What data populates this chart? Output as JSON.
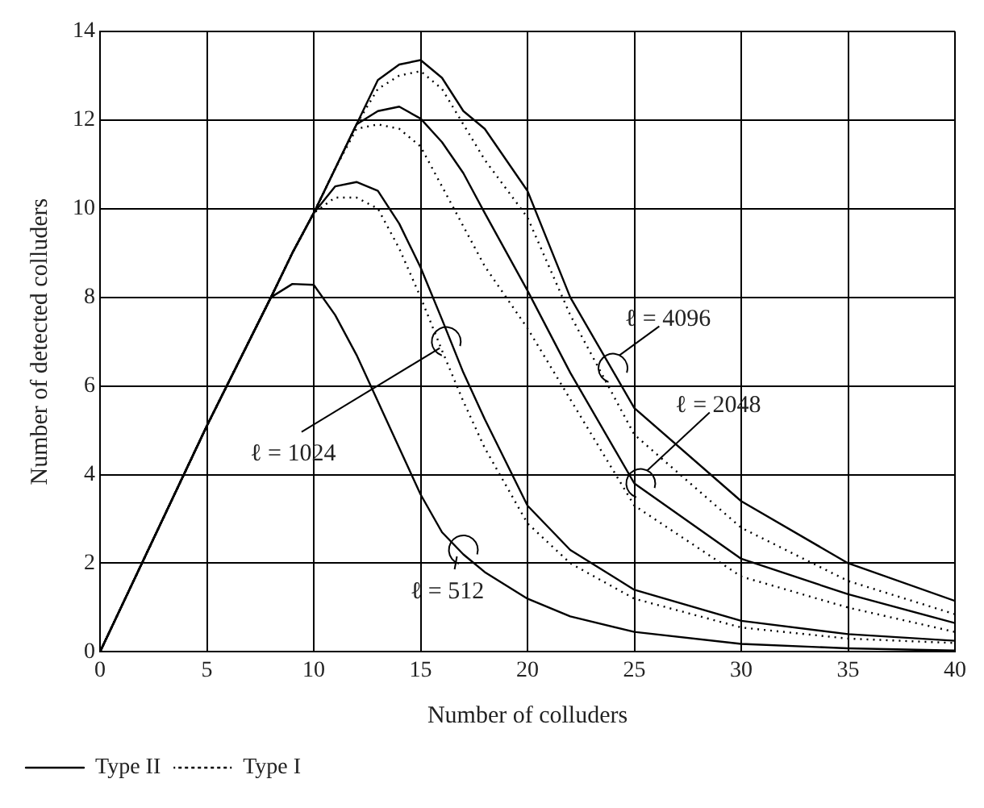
{
  "chart_data": {
    "type": "line",
    "xlabel": "Number of colluders",
    "ylabel": "Number of detected colluders",
    "x": [
      0,
      5,
      8,
      9,
      10,
      11,
      12,
      13,
      14,
      15,
      16,
      17,
      18,
      20,
      22,
      25,
      30,
      35,
      40
    ],
    "series": [
      {
        "name": "Type II",
        "color": "#000000",
        "line_style": "solid",
        "values": [
          0,
          5.1,
          8.0,
          8.3,
          8.28,
          7.6,
          6.7,
          5.65,
          4.6,
          3.55,
          2.7,
          2.2,
          1.8,
          1.2,
          0.8,
          0.45,
          0.18,
          0.08,
          0.03
        ]
      },
      {
        "name": "Type I",
        "color": "#000000",
        "line_style": "dotted",
        "values": [
          0,
          5.1,
          8.0,
          9.0,
          9.9,
          10.25,
          10.25,
          10.0,
          9.1,
          8.0,
          6.8,
          5.65,
          4.6,
          2.9,
          2.0,
          1.2,
          0.55,
          0.3,
          0.2
        ]
      },
      {
        "color": "#000000",
        "line_style": "solid",
        "values": [
          0,
          5.1,
          8.0,
          9.0,
          9.9,
          10.5,
          10.6,
          10.4,
          9.66,
          8.67,
          7.5,
          6.3,
          5.25,
          3.3,
          2.3,
          1.4,
          0.7,
          0.4,
          0.25
        ]
      },
      {
        "color": "#000000",
        "line_style": "dotted",
        "values": [
          0,
          5.1,
          8.0,
          9.0,
          9.9,
          10.9,
          11.8,
          11.9,
          11.8,
          11.4,
          10.5,
          9.6,
          8.7,
          7.3,
          5.7,
          3.3,
          1.7,
          1.0,
          0.45
        ]
      },
      {
        "color": "#000000",
        "line_style": "solid",
        "values": [
          0,
          5.1,
          8.0,
          9.0,
          9.9,
          10.9,
          11.9,
          12.2,
          12.3,
          12.03,
          11.5,
          10.8,
          9.9,
          8.15,
          6.3,
          3.8,
          2.1,
          1.3,
          0.65
        ]
      },
      {
        "color": "#000000",
        "line_style": "dotted",
        "values": [
          0,
          5.1,
          8.0,
          9.0,
          9.9,
          10.9,
          11.9,
          12.7,
          13.0,
          13.1,
          12.7,
          11.9,
          11.1,
          9.8,
          7.6,
          4.9,
          2.8,
          1.6,
          0.85
        ]
      },
      {
        "color": "#000000",
        "line_style": "solid",
        "values": [
          0,
          5.1,
          8.0,
          9.0,
          9.9,
          10.9,
          11.9,
          12.9,
          13.25,
          13.35,
          12.95,
          12.2,
          11.8,
          10.4,
          8.0,
          5.5,
          3.4,
          2.0,
          1.15
        ]
      }
    ],
    "xlim": [
      0,
      40
    ],
    "xticks": [
      0,
      5,
      10,
      15,
      20,
      25,
      30,
      35,
      40
    ],
    "ylim": [
      0,
      14
    ],
    "yticks": [
      0,
      2,
      4,
      6,
      8,
      10,
      12,
      14
    ],
    "grid": true,
    "legend": "bottom left",
    "marker": "none",
    "annotations": [
      {
        "text": "ℓ = 4096",
        "x": 24,
        "y": 6.4
      },
      {
        "text": "ℓ = 2048",
        "x": 25.3,
        "y": 3.8
      },
      {
        "text": "ℓ = 1024",
        "x": 16.2,
        "y": 7.0
      },
      {
        "text": "ℓ = 512",
        "x": 17,
        "y": 2.3
      }
    ]
  }
}
